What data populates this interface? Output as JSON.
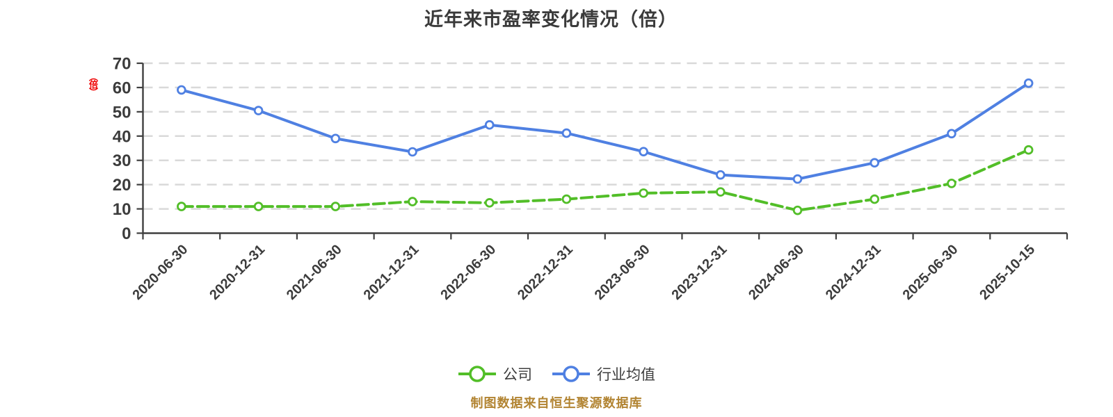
{
  "chart_data": {
    "type": "line",
    "title": "近年来市盈率变化情况（倍）",
    "y_unit_label": "（倍）",
    "xlabel": "",
    "ylabel": "（倍）",
    "y_axis": {
      "min": 0,
      "max": 70,
      "tick_step": 10,
      "ticks": [
        0,
        10,
        20,
        30,
        40,
        50,
        60,
        70
      ]
    },
    "grid": "horizontal-dashed",
    "legend_position": "bottom",
    "categories": [
      "2020-06-30",
      "2020-12-31",
      "2021-06-30",
      "2021-12-31",
      "2022-06-30",
      "2022-12-31",
      "2023-06-30",
      "2023-12-31",
      "2024-06-30",
      "2024-12-31",
      "2025-06-30",
      "2025-10-15"
    ],
    "series": [
      {
        "name": "公司",
        "style": "dashed",
        "color": "#52be28",
        "values": [
          11,
          11,
          11,
          13,
          12.5,
          14,
          16.5,
          17,
          9.4,
          14,
          20.5,
          34.3
        ]
      },
      {
        "name": "行业均值",
        "style": "solid",
        "color": "#4f80e2",
        "values": [
          59,
          50.5,
          39,
          33.5,
          44.6,
          41.2,
          33.6,
          24,
          22.3,
          29,
          41,
          61.8
        ]
      }
    ]
  },
  "legend": {
    "items": [
      {
        "label": "公司",
        "color": "#52be28"
      },
      {
        "label": "行业均值",
        "color": "#4f80e2"
      }
    ]
  },
  "footer": {
    "source_text": "制图数据来自恒生聚源数据库",
    "color": "#b28432"
  },
  "colors": {
    "background": "#ffffff",
    "title": "#3a3a3a",
    "axis": "#3f3f3f",
    "tick_label": "#3c3c3c",
    "grid": "#d9d9d9",
    "y_unit": "#ee0000"
  }
}
